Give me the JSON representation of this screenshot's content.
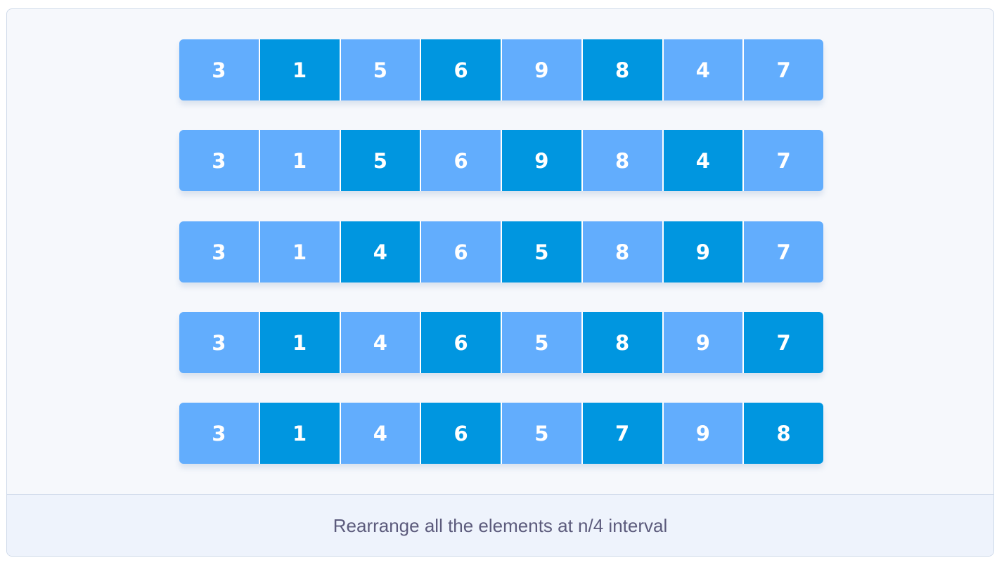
{
  "colors": {
    "light_cell": "#62adfd",
    "dark_cell": "#0096e0",
    "caption_text": "#5c5b7c"
  },
  "rows": [
    {
      "values": [
        "3",
        "1",
        "5",
        "6",
        "9",
        "8",
        "4",
        "7"
      ],
      "highlight": [
        false,
        true,
        false,
        true,
        false,
        true,
        false,
        false
      ]
    },
    {
      "values": [
        "3",
        "1",
        "5",
        "6",
        "9",
        "8",
        "4",
        "7"
      ],
      "highlight": [
        false,
        false,
        true,
        false,
        true,
        false,
        true,
        false
      ]
    },
    {
      "values": [
        "3",
        "1",
        "4",
        "6",
        "5",
        "8",
        "9",
        "7"
      ],
      "highlight": [
        false,
        false,
        true,
        false,
        true,
        false,
        true,
        false
      ]
    },
    {
      "values": [
        "3",
        "1",
        "4",
        "6",
        "5",
        "8",
        "9",
        "7"
      ],
      "highlight": [
        false,
        true,
        false,
        true,
        false,
        true,
        false,
        true
      ]
    },
    {
      "values": [
        "3",
        "1",
        "4",
        "6",
        "5",
        "7",
        "9",
        "8"
      ],
      "highlight": [
        false,
        true,
        false,
        true,
        false,
        true,
        false,
        true
      ]
    }
  ],
  "caption": "Rearrange all the elements at n/4 interval"
}
